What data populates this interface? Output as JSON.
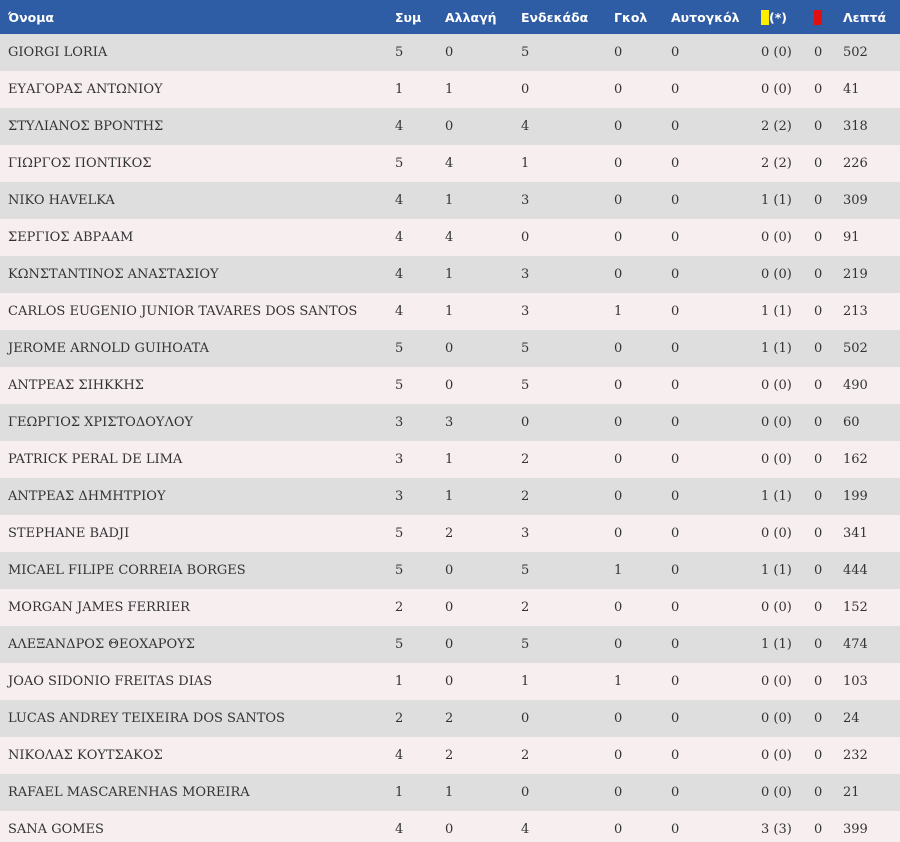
{
  "table": {
    "headers": {
      "name": "Όνομα",
      "apps": "Συμ",
      "subs": "Αλλαγή",
      "starts": "Ενδεκάδα",
      "goals": "Γκολ",
      "own_goals": "Αυτογκόλ",
      "yellow_suffix": "(*)",
      "minutes": "Λεπτά"
    },
    "colors": {
      "header_bg": "#2e5da6",
      "row_odd": "#dedede",
      "row_even": "#f7eef0",
      "yellow_card": "#ffee00",
      "red_card": "#e01010"
    },
    "rows": [
      {
        "name": "GIORGI LORIA",
        "apps": "5",
        "subs": "0",
        "starts": "5",
        "goals": "0",
        "own_goals": "0",
        "yellow": "0 (0)",
        "red": "0",
        "minutes": "502"
      },
      {
        "name": "ΕΥΑΓΟΡΑΣ ΑΝΤΩΝΙΟΥ",
        "apps": "1",
        "subs": "1",
        "starts": "0",
        "goals": "0",
        "own_goals": "0",
        "yellow": "0 (0)",
        "red": "0",
        "minutes": "41"
      },
      {
        "name": "ΣΤΥΛΙΑΝΟΣ ΒΡΟΝΤΗΣ",
        "apps": "4",
        "subs": "0",
        "starts": "4",
        "goals": "0",
        "own_goals": "0",
        "yellow": "2 (2)",
        "red": "0",
        "minutes": "318"
      },
      {
        "name": "ΓΙΩΡΓΟΣ ΠΟΝΤΙΚΟΣ",
        "apps": "5",
        "subs": "4",
        "starts": "1",
        "goals": "0",
        "own_goals": "0",
        "yellow": "2 (2)",
        "red": "0",
        "minutes": "226"
      },
      {
        "name": "NIKO HAVELKA",
        "apps": "4",
        "subs": "1",
        "starts": "3",
        "goals": "0",
        "own_goals": "0",
        "yellow": "1 (1)",
        "red": "0",
        "minutes": "309"
      },
      {
        "name": "ΣΕΡΓΙΟΣ ΑΒΡΑΑΜ",
        "apps": "4",
        "subs": "4",
        "starts": "0",
        "goals": "0",
        "own_goals": "0",
        "yellow": "0 (0)",
        "red": "0",
        "minutes": "91"
      },
      {
        "name": "ΚΩΝΣΤΑΝΤΙΝΟΣ ΑΝΑΣΤΑΣΙΟΥ",
        "apps": "4",
        "subs": "1",
        "starts": "3",
        "goals": "0",
        "own_goals": "0",
        "yellow": "0 (0)",
        "red": "0",
        "minutes": "219"
      },
      {
        "name": "CARLOS EUGENIO JUNIOR TAVARES DOS SANTOS",
        "apps": "4",
        "subs": "1",
        "starts": "3",
        "goals": "1",
        "own_goals": "0",
        "yellow": "1 (1)",
        "red": "0",
        "minutes": "213"
      },
      {
        "name": "JEROME ARNOLD GUIHOATA",
        "apps": "5",
        "subs": "0",
        "starts": "5",
        "goals": "0",
        "own_goals": "0",
        "yellow": "1 (1)",
        "red": "0",
        "minutes": "502"
      },
      {
        "name": "ΑΝΤΡΕΑΣ ΣΙΗΚΚΗΣ",
        "apps": "5",
        "subs": "0",
        "starts": "5",
        "goals": "0",
        "own_goals": "0",
        "yellow": "0 (0)",
        "red": "0",
        "minutes": "490"
      },
      {
        "name": "ΓΕΩΡΓΙΟΣ ΧΡΙΣΤΟΔΟΥΛΟΥ",
        "apps": "3",
        "subs": "3",
        "starts": "0",
        "goals": "0",
        "own_goals": "0",
        "yellow": "0 (0)",
        "red": "0",
        "minutes": "60"
      },
      {
        "name": "PATRICK PERAL DE LIMA",
        "apps": "3",
        "subs": "1",
        "starts": "2",
        "goals": "0",
        "own_goals": "0",
        "yellow": "0 (0)",
        "red": "0",
        "minutes": "162"
      },
      {
        "name": "ΑΝΤΡΕΑΣ ΔΗΜΗΤΡΙΟΥ",
        "apps": "3",
        "subs": "1",
        "starts": "2",
        "goals": "0",
        "own_goals": "0",
        "yellow": "1 (1)",
        "red": "0",
        "minutes": "199"
      },
      {
        "name": "STEPHANE BADJI",
        "apps": "5",
        "subs": "2",
        "starts": "3",
        "goals": "0",
        "own_goals": "0",
        "yellow": "0 (0)",
        "red": "0",
        "minutes": "341"
      },
      {
        "name": "MICAEL FILIPE CORREIA BORGES",
        "apps": "5",
        "subs": "0",
        "starts": "5",
        "goals": "1",
        "own_goals": "0",
        "yellow": "1 (1)",
        "red": "0",
        "minutes": "444"
      },
      {
        "name": "MORGAN JAMES FERRIER",
        "apps": "2",
        "subs": "0",
        "starts": "2",
        "goals": "0",
        "own_goals": "0",
        "yellow": "0 (0)",
        "red": "0",
        "minutes": "152"
      },
      {
        "name": "ΑΛΕΞΑΝΔΡΟΣ ΘΕΟΧΑΡΟΥΣ",
        "apps": "5",
        "subs": "0",
        "starts": "5",
        "goals": "0",
        "own_goals": "0",
        "yellow": "1 (1)",
        "red": "0",
        "minutes": "474"
      },
      {
        "name": "JOAO SIDONIO FREITAS DIAS",
        "apps": "1",
        "subs": "0",
        "starts": "1",
        "goals": "1",
        "own_goals": "0",
        "yellow": "0 (0)",
        "red": "0",
        "minutes": "103"
      },
      {
        "name": "LUCAS ANDREY TEIXEIRA DOS SANTOS",
        "apps": "2",
        "subs": "2",
        "starts": "0",
        "goals": "0",
        "own_goals": "0",
        "yellow": "0 (0)",
        "red": "0",
        "minutes": "24"
      },
      {
        "name": "ΝΙΚΟΛΑΣ ΚΟΥΤΣΑΚΟΣ",
        "apps": "4",
        "subs": "2",
        "starts": "2",
        "goals": "0",
        "own_goals": "0",
        "yellow": "0 (0)",
        "red": "0",
        "minutes": "232"
      },
      {
        "name": "RAFAEL MASCARENHAS MOREIRA",
        "apps": "1",
        "subs": "1",
        "starts": "0",
        "goals": "0",
        "own_goals": "0",
        "yellow": "0 (0)",
        "red": "0",
        "minutes": "21"
      },
      {
        "name": "SANA GOMES",
        "apps": "4",
        "subs": "0",
        "starts": "4",
        "goals": "0",
        "own_goals": "0",
        "yellow": "3 (3)",
        "red": "0",
        "minutes": "399"
      }
    ]
  }
}
